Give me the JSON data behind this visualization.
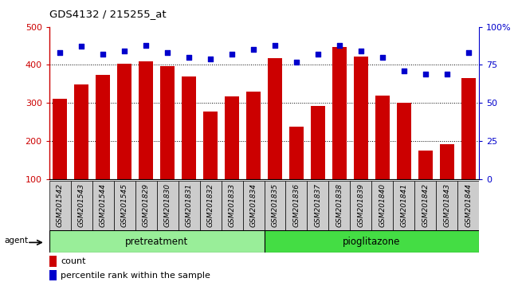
{
  "title": "GDS4132 / 215255_at",
  "categories": [
    "GSM201542",
    "GSM201543",
    "GSM201544",
    "GSM201545",
    "GSM201829",
    "GSM201830",
    "GSM201831",
    "GSM201832",
    "GSM201833",
    "GSM201834",
    "GSM201835",
    "GSM201836",
    "GSM201837",
    "GSM201838",
    "GSM201839",
    "GSM201840",
    "GSM201841",
    "GSM201842",
    "GSM201843",
    "GSM201844"
  ],
  "bar_values": [
    310,
    348,
    373,
    403,
    410,
    397,
    370,
    278,
    318,
    330,
    418,
    238,
    293,
    447,
    422,
    320,
    300,
    175,
    192,
    365
  ],
  "dot_values": [
    83,
    87,
    82,
    84,
    88,
    83,
    80,
    79,
    82,
    85,
    88,
    77,
    82,
    88,
    84,
    80,
    71,
    69,
    69,
    83
  ],
  "bar_color": "#cc0000",
  "dot_color": "#0000cc",
  "ylim_left": [
    100,
    500
  ],
  "ylim_right": [
    0,
    100
  ],
  "yticks_left": [
    100,
    200,
    300,
    400,
    500
  ],
  "yticks_right": [
    0,
    25,
    50,
    75,
    100
  ],
  "group1_label": "pretreatment",
  "group2_label": "pioglitazone",
  "group1_count": 10,
  "group2_count": 10,
  "group1_color": "#99ee99",
  "group2_color": "#44dd44",
  "agent_label": "agent",
  "legend_count_label": "count",
  "legend_pct_label": "percentile rank within the sample",
  "tick_bg_color": "#cccccc",
  "fig_bg_color": "#ffffff"
}
